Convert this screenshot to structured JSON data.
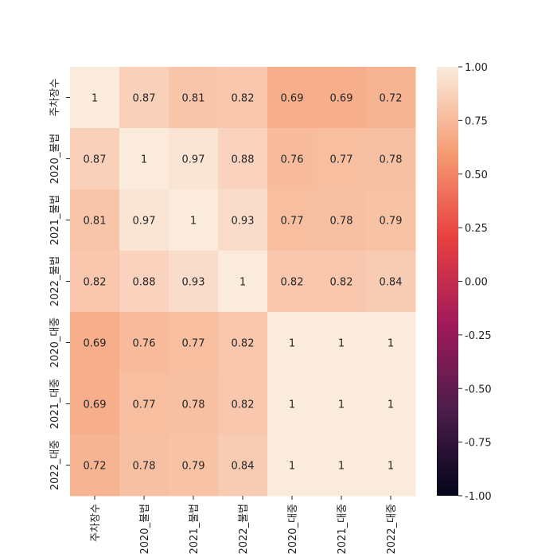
{
  "chart_data": {
    "type": "heatmap",
    "labels": [
      "주차장수",
      "2020_불법",
      "2021_불법",
      "2022_불법",
      "2020_대중",
      "2021_대중",
      "2022_대중"
    ],
    "matrix": [
      [
        1,
        0.87,
        0.81,
        0.82,
        0.69,
        0.69,
        0.72
      ],
      [
        0.87,
        1,
        0.97,
        0.88,
        0.76,
        0.77,
        0.78
      ],
      [
        0.81,
        0.97,
        1,
        0.93,
        0.77,
        0.78,
        0.79
      ],
      [
        0.82,
        0.88,
        0.93,
        1,
        0.82,
        0.82,
        0.84
      ],
      [
        0.69,
        0.76,
        0.77,
        0.82,
        1,
        1,
        1
      ],
      [
        0.69,
        0.77,
        0.78,
        0.82,
        1,
        1,
        1
      ],
      [
        0.72,
        0.78,
        0.79,
        0.84,
        1,
        1,
        1
      ]
    ],
    "cell_text": [
      [
        "1",
        "0.87",
        "0.81",
        "0.82",
        "0.69",
        "0.69",
        "0.72"
      ],
      [
        "0.87",
        "1",
        "0.97",
        "0.88",
        "0.76",
        "0.77",
        "0.78"
      ],
      [
        "0.81",
        "0.97",
        "1",
        "0.93",
        "0.77",
        "0.78",
        "0.79"
      ],
      [
        "0.82",
        "0.88",
        "0.93",
        "1",
        "0.82",
        "0.82",
        "0.84"
      ],
      [
        "0.69",
        "0.76",
        "0.77",
        "0.82",
        "1",
        "1",
        "1"
      ],
      [
        "0.69",
        "0.77",
        "0.78",
        "0.82",
        "1",
        "1",
        "1"
      ],
      [
        "0.72",
        "0.78",
        "0.79",
        "0.84",
        "1",
        "1",
        "1"
      ]
    ],
    "colorbar": {
      "range": [
        -1,
        1
      ],
      "ticks": [
        1.0,
        0.75,
        0.5,
        0.25,
        0.0,
        -0.25,
        -0.5,
        -0.75,
        -1.0
      ],
      "tick_labels": [
        "1.00",
        "0.75",
        "0.50",
        "0.25",
        "0.00",
        "-0.25",
        "-0.50",
        "-0.75",
        "-1.00"
      ],
      "colormap": [
        "#03051a",
        "#4c1d4b",
        "#a11a5b",
        "#e83f3f",
        "#f69c73",
        "#faebdd"
      ]
    },
    "x_tick_rotation": "vertical",
    "y_tick_rotation": "vertical"
  }
}
